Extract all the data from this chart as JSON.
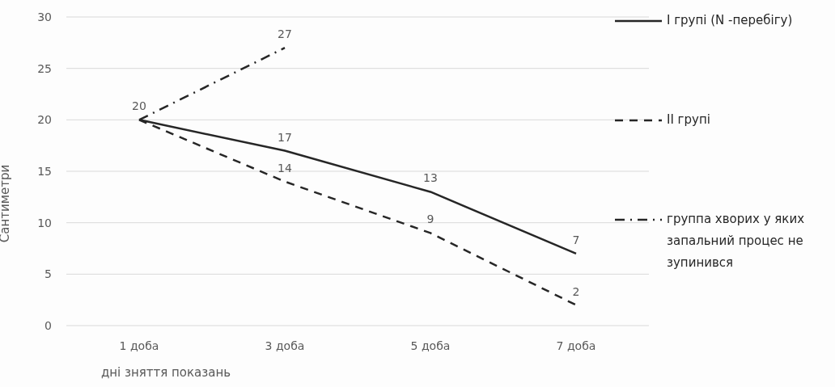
{
  "chart_data": {
    "type": "line",
    "ylabel": "Сантиметри",
    "xlabel": "дні зняття показань",
    "categories": [
      "1 доба",
      "3 доба",
      "5 доба",
      "7 доба"
    ],
    "series": [
      {
        "name": "I групі (N -перебігу)",
        "color": "#262626",
        "line_style": "solid",
        "values": [
          20,
          17,
          13,
          7
        ],
        "value_labels": [
          "20",
          "17",
          "13",
          "7"
        ]
      },
      {
        "name": "II групі",
        "color": "#262626",
        "line_style": "dashed",
        "values": [
          20,
          14,
          9,
          2
        ],
        "value_labels": [
          null,
          "14",
          "9",
          "2"
        ]
      },
      {
        "name": "группа хворих у яких запальний процес не зупинився",
        "color": "#262626",
        "line_style": "dashdot",
        "values": [
          20,
          27,
          null,
          null
        ],
        "value_labels": [
          null,
          "27",
          null,
          null
        ]
      }
    ],
    "ylim": [
      0,
      30
    ],
    "yticks": [
      0,
      5,
      10,
      15,
      20,
      25,
      30
    ],
    "grid": "y",
    "legend": "right",
    "marker": "none"
  }
}
